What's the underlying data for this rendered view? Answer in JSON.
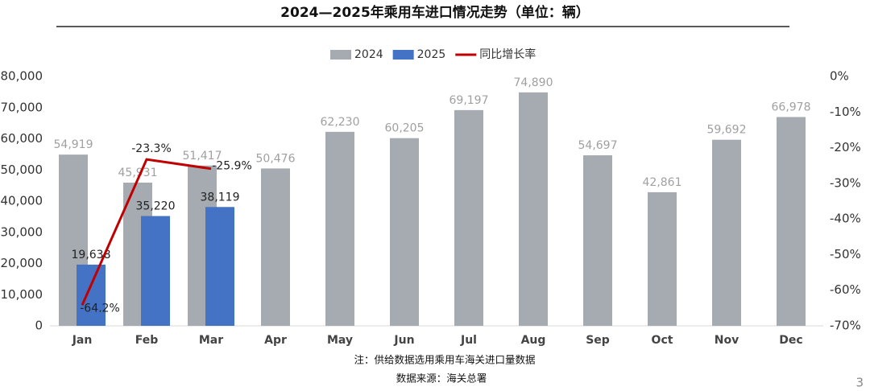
{
  "chart_data": {
    "type": "bar",
    "title": "2024—2025年乘用车进口情况走势（单位：辆）",
    "categories": [
      "Jan",
      "Feb",
      "Mar",
      "Apr",
      "May",
      "Jun",
      "Jul",
      "Aug",
      "Sep",
      "Oct",
      "Nov",
      "Dec"
    ],
    "series": [
      {
        "name": "2024",
        "type": "bar",
        "color": "#a5abb0",
        "values": [
          54919,
          45931,
          51417,
          50476,
          62230,
          60205,
          69197,
          74890,
          54697,
          42861,
          59692,
          66978
        ],
        "value_labels": [
          "54,919",
          "45,931",
          "51,417",
          "50,476",
          "62,230",
          "60,205",
          "69,197",
          "74,890",
          "54,697",
          "42,861",
          "59,692",
          "66,978"
        ]
      },
      {
        "name": "2025",
        "type": "bar",
        "color": "#4472c4",
        "values": [
          19638,
          35220,
          38119,
          null,
          null,
          null,
          null,
          null,
          null,
          null,
          null,
          null
        ],
        "value_labels": [
          "19,638",
          "35,220",
          "38,119",
          null,
          null,
          null,
          null,
          null,
          null,
          null,
          null,
          null
        ]
      },
      {
        "name": "同比增长率",
        "type": "line",
        "axis": "y2",
        "color": "#c00000",
        "values": [
          -64.2,
          -23.3,
          -25.9,
          null,
          null,
          null,
          null,
          null,
          null,
          null,
          null,
          null
        ],
        "value_labels": [
          "-64.2%",
          "-23.3%",
          "-25.9%",
          null,
          null,
          null,
          null,
          null,
          null,
          null,
          null,
          null
        ]
      }
    ],
    "ylim": [
      0,
      80000
    ],
    "yticks": [
      0,
      {
        "value": 10000,
        "label": "10,000"
      },
      {
        "value": 20000,
        "label": "20,000"
      },
      {
        "value": 30000,
        "label": "30,000"
      },
      {
        "value": 40000,
        "label": "40,000"
      },
      {
        "value": 50000,
        "label": "50,000"
      },
      {
        "value": 60000,
        "label": "60,000"
      },
      {
        "value": 70000,
        "label": "70,000"
      },
      {
        "value": 80000,
        "label": "80,000"
      }
    ],
    "y2lim": [
      -70,
      0
    ],
    "y2ticks": [
      {
        "value": 0,
        "label": "0%"
      },
      {
        "value": -10,
        "label": "-10%"
      },
      {
        "value": -20,
        "label": "-20%"
      },
      {
        "value": -30,
        "label": "-30%"
      },
      {
        "value": -40,
        "label": "-40%"
      },
      {
        "value": -50,
        "label": "-50%"
      },
      {
        "value": -60,
        "label": "-60%"
      },
      {
        "value": -70,
        "label": "-70%"
      }
    ],
    "legend": "top",
    "notes": [
      "注：供给数据选用乘用车海关进口量数据",
      "数据来源：海关总署"
    ],
    "page_number": "3"
  }
}
